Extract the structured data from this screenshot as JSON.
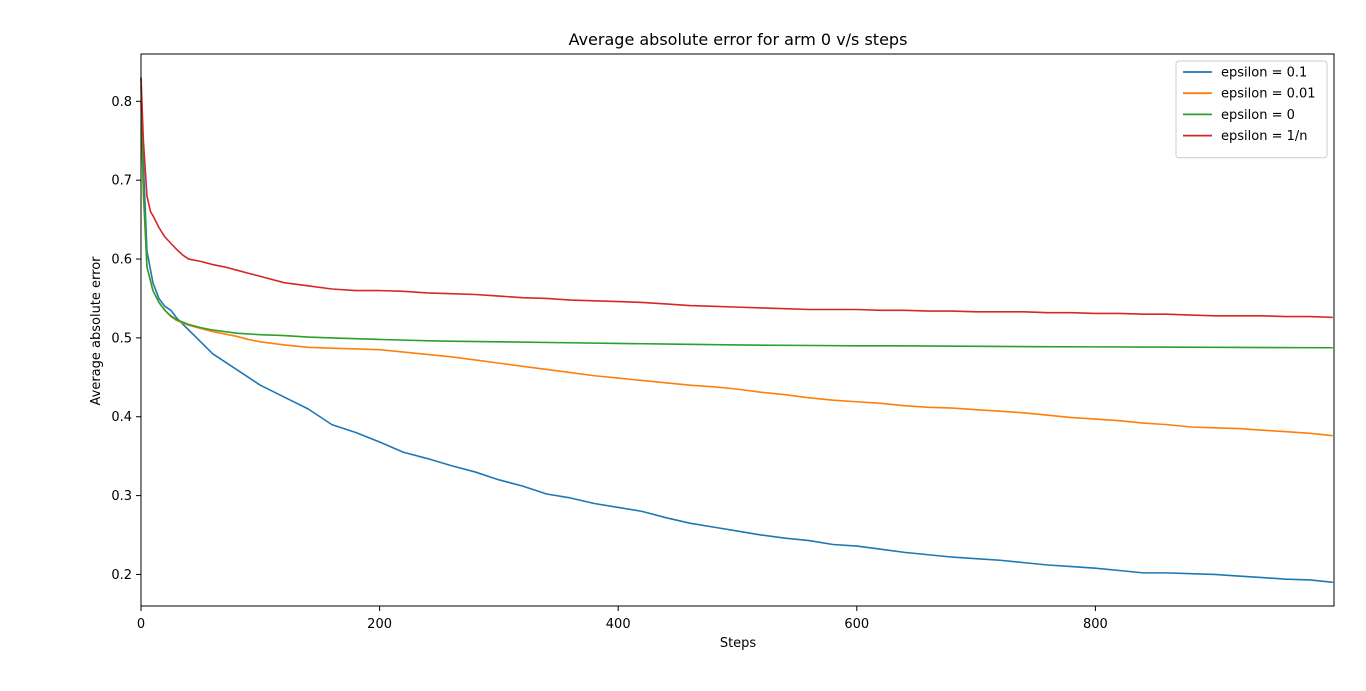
{
  "chart_data": {
    "type": "line",
    "title": "Average absolute error for arm 0 v/s steps",
    "xlabel": "Steps",
    "ylabel": "Average absolute error",
    "xlim": [
      0,
      1000
    ],
    "ylim": [
      0.16,
      0.86
    ],
    "xticks": [
      0,
      200,
      400,
      600,
      800
    ],
    "yticks": [
      0.2,
      0.3,
      0.4,
      0.5,
      0.6,
      0.7,
      0.8
    ],
    "xtick_labels": [
      "0",
      "200",
      "400",
      "600",
      "800"
    ],
    "ytick_labels": [
      "0.2",
      "0.3",
      "0.4",
      "0.5",
      "0.6",
      "0.7",
      "0.8"
    ],
    "grid": false,
    "legend_position": "top-right",
    "series": [
      {
        "name": "epsilon = 0.1",
        "color": "#1f77b4",
        "x": [
          0,
          2,
          5,
          10,
          15,
          20,
          25,
          30,
          40,
          50,
          60,
          70,
          80,
          90,
          100,
          120,
          140,
          160,
          180,
          200,
          220,
          240,
          260,
          280,
          300,
          320,
          340,
          360,
          380,
          400,
          420,
          440,
          460,
          480,
          500,
          520,
          540,
          560,
          580,
          600,
          620,
          640,
          660,
          680,
          700,
          720,
          740,
          760,
          780,
          800,
          820,
          840,
          860,
          880,
          900,
          920,
          940,
          960,
          980,
          999
        ],
        "values": [
          0.83,
          0.72,
          0.61,
          0.57,
          0.55,
          0.54,
          0.535,
          0.525,
          0.51,
          0.495,
          0.48,
          0.47,
          0.46,
          0.45,
          0.44,
          0.425,
          0.41,
          0.39,
          0.38,
          0.368,
          0.355,
          0.347,
          0.338,
          0.33,
          0.32,
          0.312,
          0.302,
          0.297,
          0.29,
          0.285,
          0.28,
          0.272,
          0.265,
          0.26,
          0.255,
          0.25,
          0.246,
          0.243,
          0.238,
          0.236,
          0.232,
          0.228,
          0.225,
          0.222,
          0.22,
          0.218,
          0.215,
          0.212,
          0.21,
          0.208,
          0.205,
          0.202,
          0.202,
          0.201,
          0.2,
          0.198,
          0.196,
          0.194,
          0.193,
          0.19
        ]
      },
      {
        "name": "epsilon = 0.01",
        "color": "#ff7f0e",
        "x": [
          0,
          2,
          5,
          10,
          15,
          20,
          25,
          30,
          40,
          50,
          60,
          70,
          80,
          90,
          100,
          120,
          140,
          160,
          180,
          200,
          220,
          240,
          260,
          280,
          300,
          320,
          340,
          360,
          380,
          400,
          420,
          440,
          460,
          480,
          500,
          520,
          540,
          560,
          580,
          600,
          620,
          640,
          660,
          680,
          700,
          720,
          740,
          760,
          780,
          800,
          820,
          840,
          860,
          880,
          900,
          920,
          940,
          960,
          980,
          999
        ],
        "values": [
          0.8,
          0.68,
          0.59,
          0.56,
          0.545,
          0.535,
          0.527,
          0.522,
          0.516,
          0.512,
          0.508,
          0.505,
          0.502,
          0.498,
          0.495,
          0.491,
          0.488,
          0.487,
          0.486,
          0.485,
          0.482,
          0.479,
          0.476,
          0.472,
          0.468,
          0.464,
          0.46,
          0.456,
          0.452,
          0.449,
          0.446,
          0.443,
          0.44,
          0.438,
          0.435,
          0.431,
          0.428,
          0.424,
          0.421,
          0.419,
          0.417,
          0.414,
          0.412,
          0.411,
          0.409,
          0.407,
          0.405,
          0.402,
          0.399,
          0.397,
          0.395,
          0.392,
          0.39,
          0.387,
          0.386,
          0.385,
          0.383,
          0.381,
          0.379,
          0.376
        ]
      },
      {
        "name": "epsilon = 0",
        "color": "#2ca02c",
        "x": [
          0,
          2,
          5,
          10,
          15,
          20,
          25,
          30,
          40,
          50,
          60,
          70,
          80,
          90,
          100,
          120,
          140,
          160,
          180,
          200,
          250,
          300,
          350,
          400,
          450,
          500,
          550,
          600,
          650,
          700,
          750,
          800,
          850,
          900,
          950,
          999
        ],
        "values": [
          0.82,
          0.69,
          0.59,
          0.56,
          0.545,
          0.535,
          0.528,
          0.523,
          0.517,
          0.513,
          0.51,
          0.508,
          0.506,
          0.505,
          0.504,
          0.503,
          0.501,
          0.5,
          0.499,
          0.498,
          0.496,
          0.495,
          0.494,
          0.493,
          0.492,
          0.491,
          0.4905,
          0.49,
          0.4898,
          0.4893,
          0.4889,
          0.4886,
          0.4883,
          0.488,
          0.4877,
          0.4875
        ]
      },
      {
        "name": "epsilon = 1/n",
        "color": "#d62728",
        "x": [
          0,
          2,
          5,
          8,
          10,
          15,
          20,
          25,
          30,
          35,
          40,
          50,
          60,
          70,
          80,
          90,
          100,
          120,
          140,
          160,
          180,
          200,
          220,
          240,
          260,
          280,
          300,
          320,
          340,
          360,
          380,
          400,
          420,
          440,
          460,
          480,
          500,
          520,
          540,
          560,
          580,
          600,
          620,
          640,
          660,
          680,
          700,
          720,
          740,
          760,
          780,
          800,
          820,
          840,
          860,
          880,
          900,
          920,
          940,
          960,
          980,
          999
        ],
        "values": [
          0.83,
          0.75,
          0.68,
          0.66,
          0.655,
          0.64,
          0.628,
          0.62,
          0.612,
          0.605,
          0.6,
          0.597,
          0.593,
          0.59,
          0.586,
          0.582,
          0.578,
          0.57,
          0.566,
          0.562,
          0.56,
          0.56,
          0.559,
          0.557,
          0.556,
          0.555,
          0.553,
          0.551,
          0.55,
          0.548,
          0.547,
          0.546,
          0.545,
          0.543,
          0.541,
          0.54,
          0.539,
          0.538,
          0.537,
          0.536,
          0.536,
          0.536,
          0.535,
          0.535,
          0.534,
          0.534,
          0.533,
          0.533,
          0.533,
          0.532,
          0.532,
          0.531,
          0.531,
          0.53,
          0.53,
          0.529,
          0.528,
          0.528,
          0.528,
          0.527,
          0.527,
          0.526
        ]
      }
    ]
  }
}
